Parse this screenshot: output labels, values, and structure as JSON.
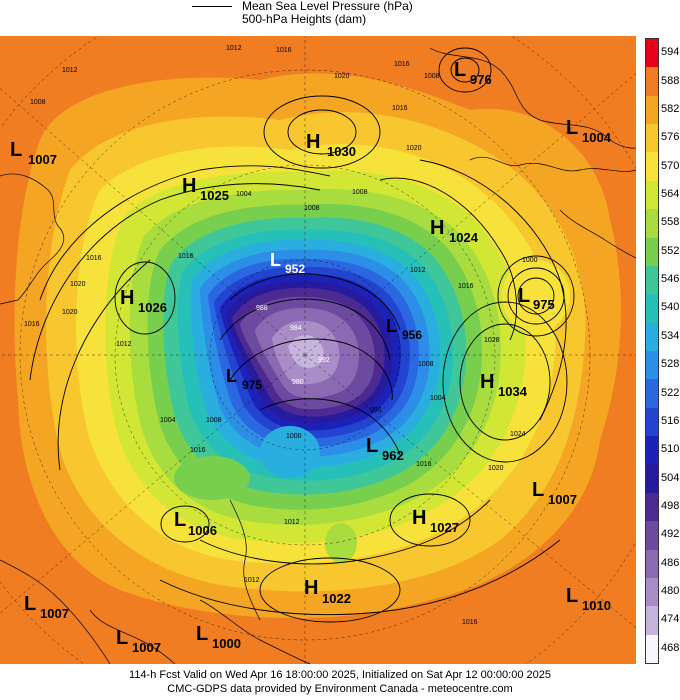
{
  "legend": {
    "mslp_label": "Mean Sea Level Pressure (hPa)",
    "heights_label": "500-hPa Heights (dam)"
  },
  "colorbar": {
    "labels": [
      "594",
      "588",
      "582",
      "576",
      "570",
      "564",
      "558",
      "552",
      "546",
      "540",
      "534",
      "528",
      "522",
      "516",
      "510",
      "504",
      "498",
      "492",
      "486",
      "480",
      "474",
      "468"
    ],
    "colors": [
      "#e8001a",
      "#f07d22",
      "#f5a524",
      "#f8c62f",
      "#f6e23a",
      "#d2e635",
      "#a9dc3f",
      "#78cf4e",
      "#3fc79a",
      "#27c0b8",
      "#2aaee0",
      "#2c8ee6",
      "#2a67e0",
      "#2244cf",
      "#1c22b8",
      "#261a9e",
      "#4c2a92",
      "#6b4aa0",
      "#8b6ab3",
      "#a98dc7",
      "#c7b4dc",
      "#f7f5fb"
    ]
  },
  "pressure_centers": [
    {
      "type": "L",
      "value": "976"
    },
    {
      "type": "L",
      "value": "1007"
    },
    {
      "type": "H",
      "value": "1030"
    },
    {
      "type": "L",
      "value": "1004"
    },
    {
      "type": "H",
      "value": "1025"
    },
    {
      "type": "H",
      "value": "1024"
    },
    {
      "type": "H",
      "value": "1026"
    },
    {
      "type": "L",
      "value": "975"
    },
    {
      "type": "L",
      "value": "952"
    },
    {
      "type": "L",
      "value": "956"
    },
    {
      "type": "H",
      "value": "1034"
    },
    {
      "type": "L",
      "value": "975"
    },
    {
      "type": "L",
      "value": "962"
    },
    {
      "type": "L",
      "value": "1007"
    },
    {
      "type": "L",
      "value": "1006"
    },
    {
      "type": "H",
      "value": "1027"
    },
    {
      "type": "H",
      "value": "1022"
    },
    {
      "type": "L",
      "value": "1007"
    },
    {
      "type": "L",
      "value": "1010"
    },
    {
      "type": "L",
      "value": "1007"
    },
    {
      "type": "L",
      "value": "1000"
    }
  ],
  "contour_labels": [
    "1012",
    "1016",
    "1020",
    "1016",
    "1008",
    "1012",
    "1008",
    "1004",
    "1016",
    "1016",
    "1020",
    "1012",
    "1012",
    "1004",
    "1008",
    "1016",
    "1012",
    "1008",
    "1008",
    "1016",
    "1028",
    "1024",
    "1020",
    "1016",
    "1000",
    "1008",
    "1016",
    "1012",
    "1016",
    "1020",
    "1016",
    "1000",
    "992",
    "984",
    "988",
    "980",
    "996",
    "1004",
    "1020"
  ],
  "footer": {
    "line1": "114-h Fcst Valid on Wed Apr 16 18:00:00 2025, Initialized on Sat Apr 12 00:00:00 2025",
    "line2": "CMC-GDPS data provided by Environment Canada - meteocentre.com"
  }
}
